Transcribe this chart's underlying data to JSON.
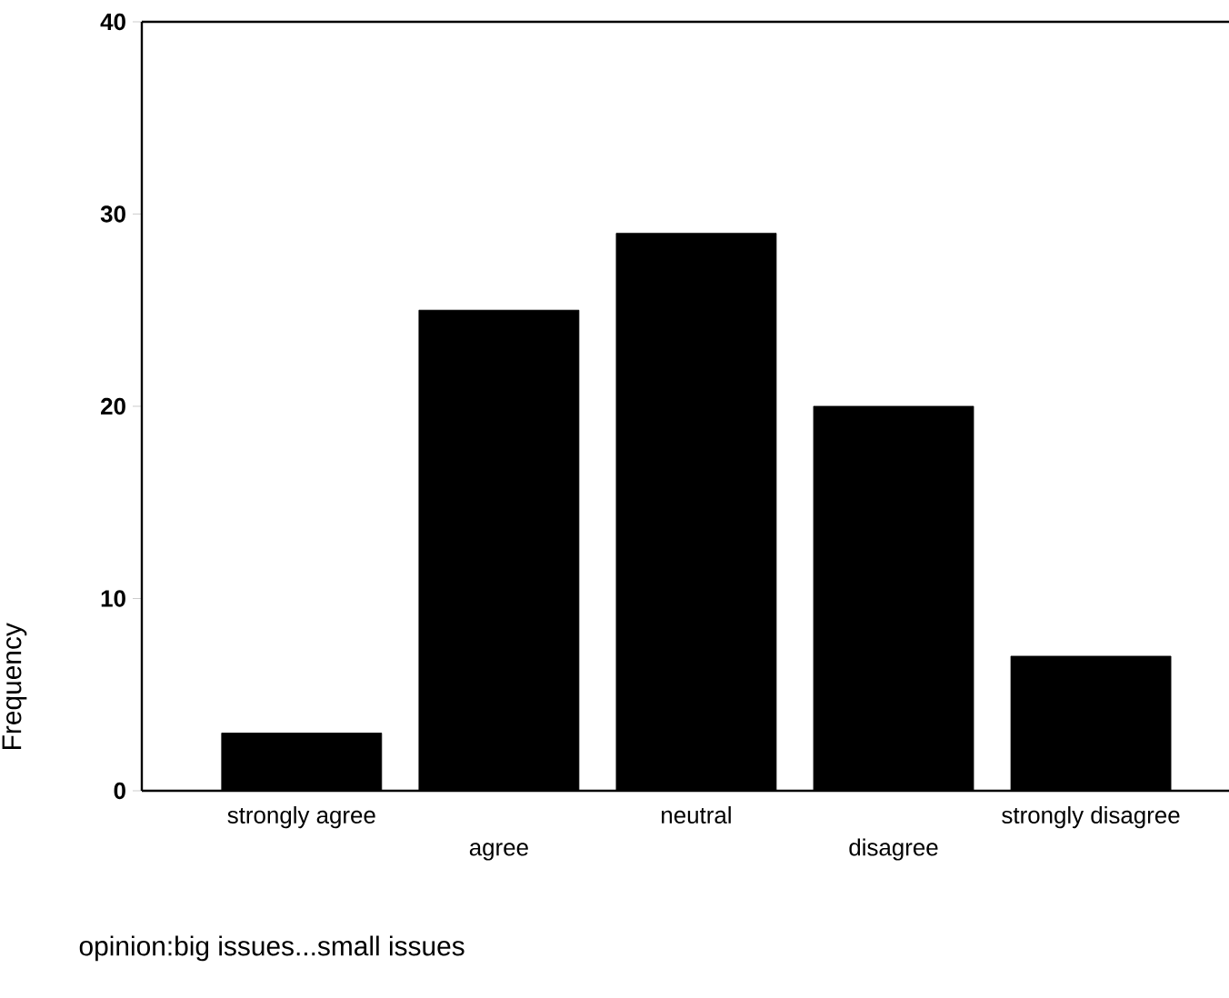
{
  "chart_data": {
    "type": "bar",
    "categories": [
      "strongly agree",
      "agree",
      "neutral",
      "disagree",
      "strongly disagree"
    ],
    "values": [
      3,
      25,
      29,
      20,
      7
    ],
    "color": "#000000",
    "xlabel": "opinion:big issues...small issues",
    "ylabel": "Frequency",
    "ylim": [
      0,
      40
    ],
    "yticks": [
      0,
      10,
      20,
      30,
      40
    ],
    "grid": false
  }
}
